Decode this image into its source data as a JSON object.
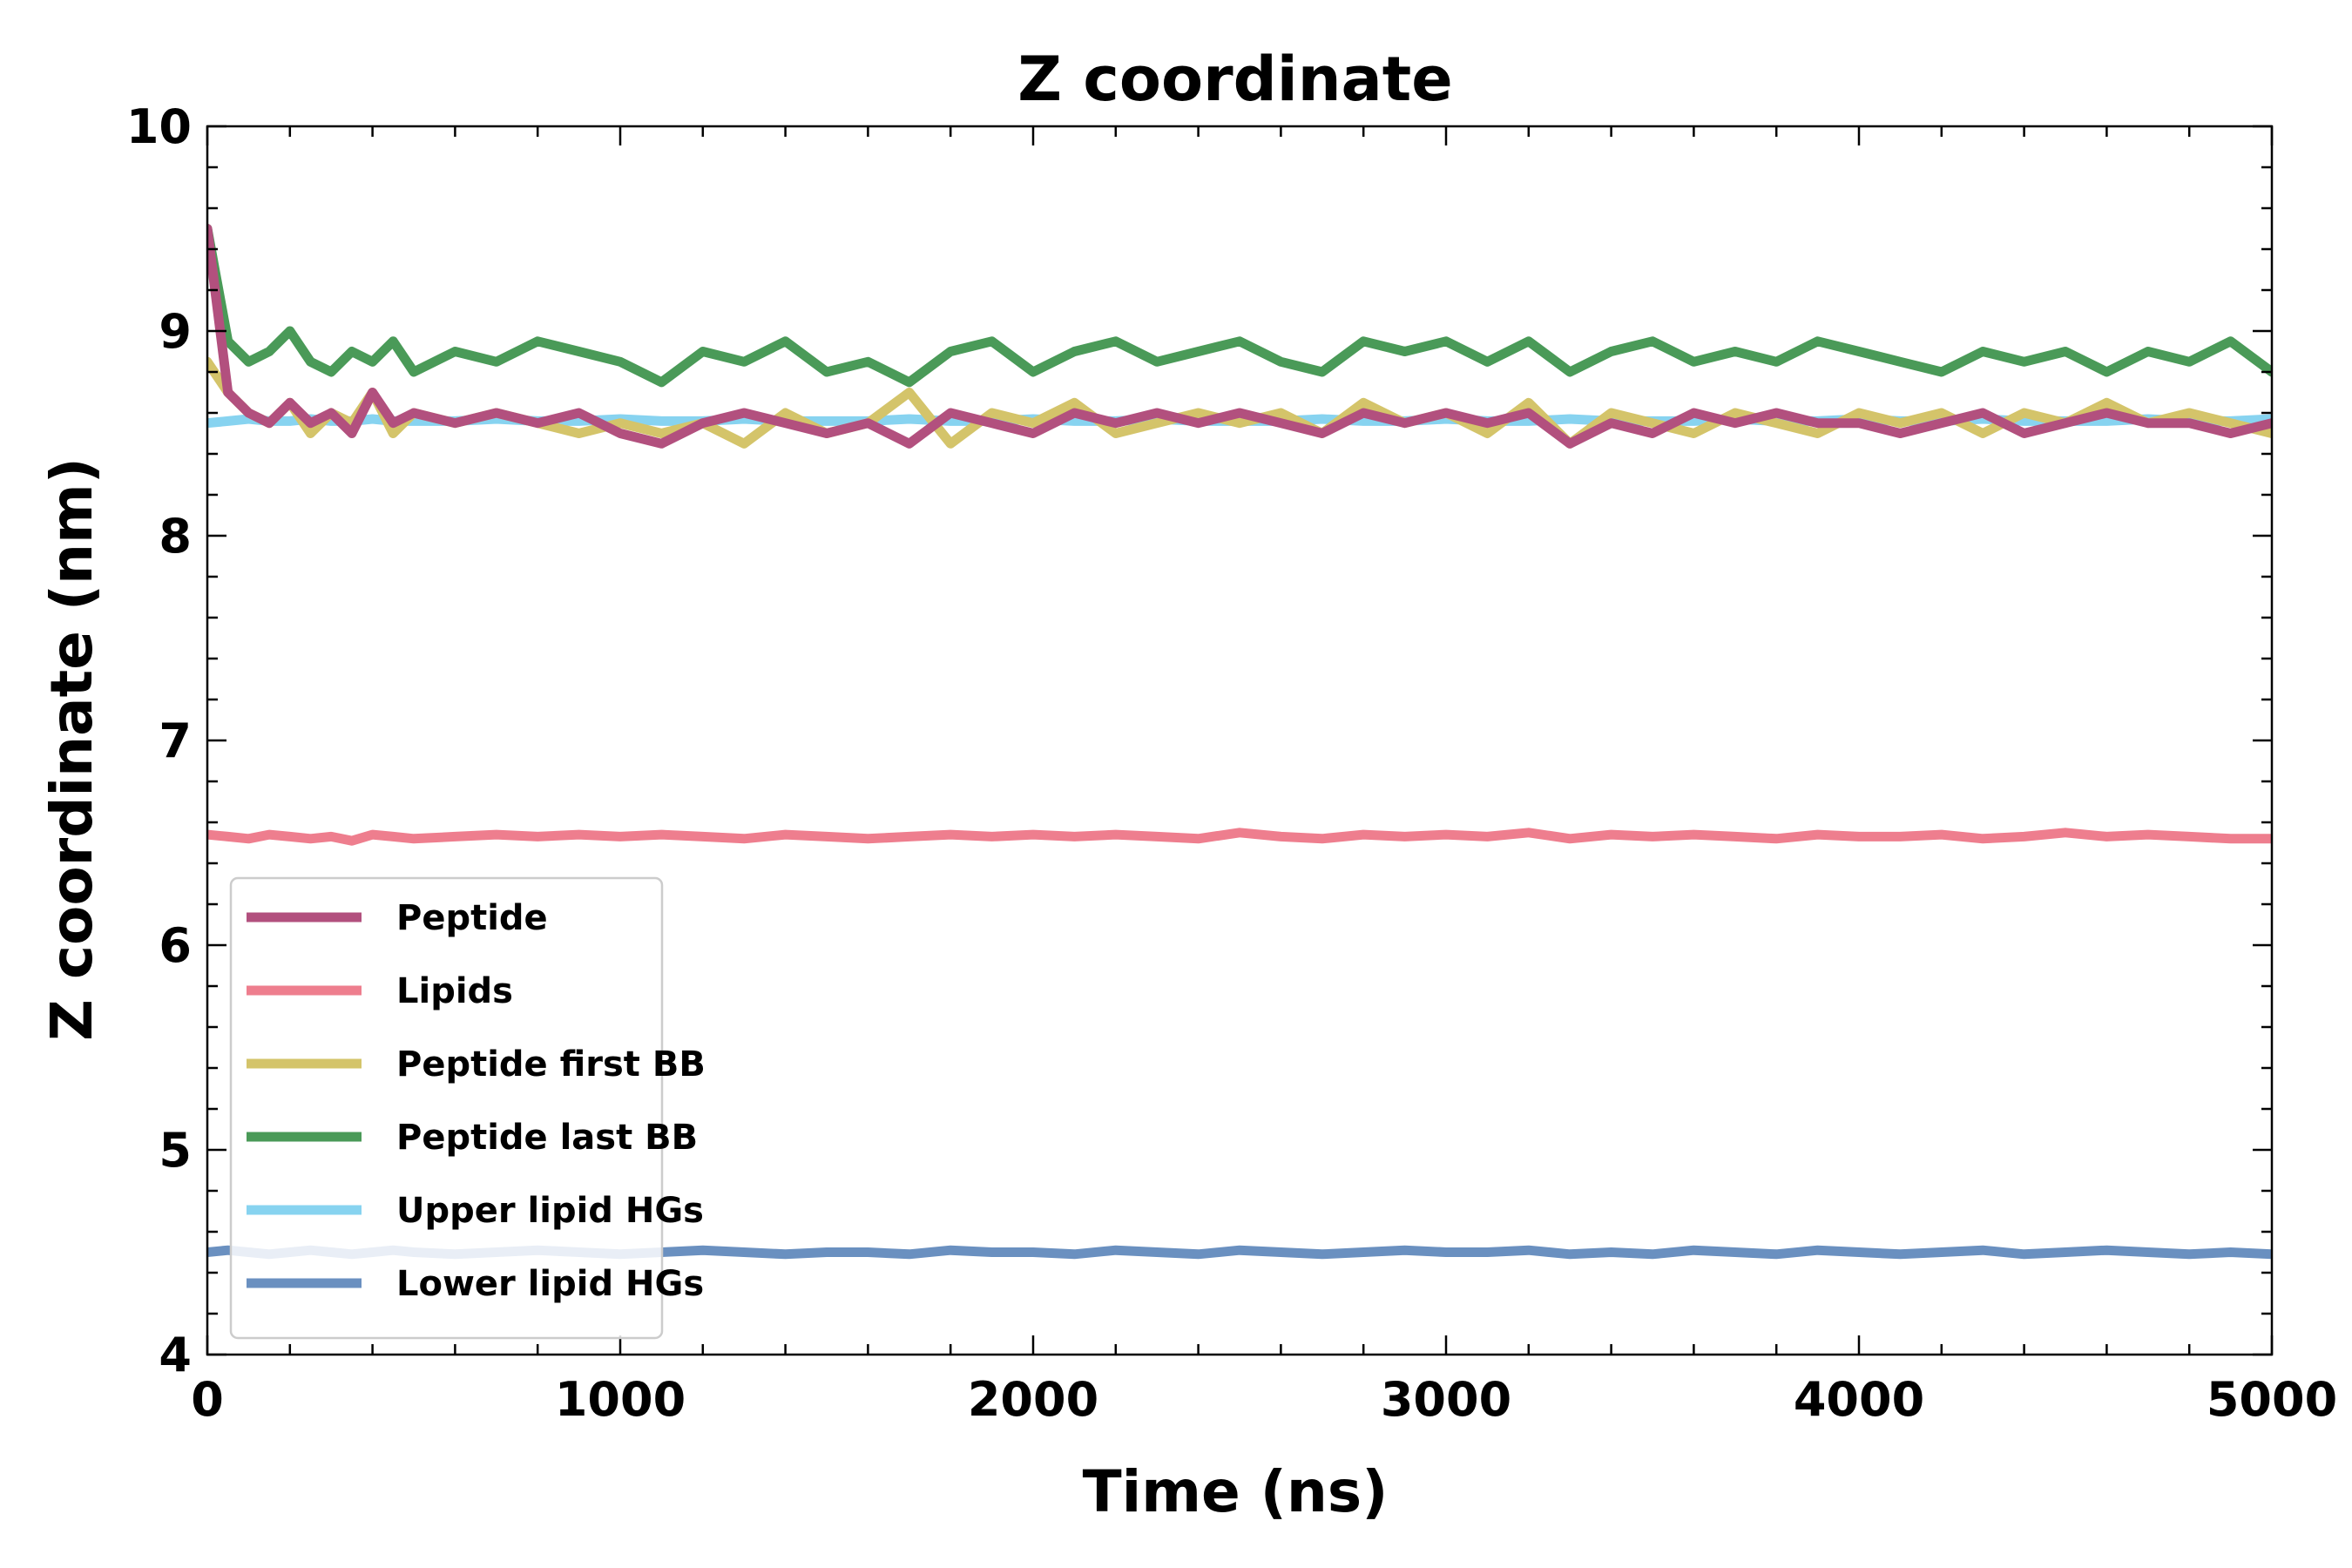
{
  "chart_data": {
    "type": "line",
    "title": "Z coordinate",
    "xlabel": "Time (ns)",
    "ylabel": "Z coordinate (nm)",
    "xlim": [
      0,
      5000
    ],
    "ylim": [
      4,
      10
    ],
    "xticks": [
      "0",
      "1000",
      "2000",
      "3000",
      "4000",
      "5000"
    ],
    "yticks": [
      "4",
      "5",
      "6",
      "7",
      "8",
      "9",
      "10"
    ],
    "grid": false,
    "legend_position": "lower-left",
    "x": [
      0,
      50,
      100,
      150,
      200,
      250,
      300,
      350,
      400,
      450,
      500,
      600,
      700,
      800,
      900,
      1000,
      1100,
      1200,
      1300,
      1400,
      1500,
      1600,
      1700,
      1800,
      1900,
      2000,
      2100,
      2200,
      2300,
      2400,
      2500,
      2600,
      2700,
      2800,
      2900,
      3000,
      3100,
      3200,
      3300,
      3400,
      3500,
      3600,
      3700,
      3800,
      3900,
      4000,
      4100,
      4200,
      4300,
      4400,
      4500,
      4600,
      4700,
      4800,
      4900,
      5000
    ],
    "series": [
      {
        "name": "Upper lipid HGs",
        "color": "#87d3f0",
        "values": [
          8.55,
          8.56,
          8.57,
          8.56,
          8.56,
          8.57,
          8.56,
          8.56,
          8.57,
          8.56,
          8.56,
          8.56,
          8.57,
          8.56,
          8.56,
          8.57,
          8.56,
          8.56,
          8.57,
          8.56,
          8.56,
          8.56,
          8.57,
          8.56,
          8.56,
          8.57,
          8.56,
          8.56,
          8.57,
          8.56,
          8.56,
          8.56,
          8.57,
          8.56,
          8.56,
          8.57,
          8.56,
          8.56,
          8.57,
          8.56,
          8.56,
          8.56,
          8.57,
          8.56,
          8.56,
          8.57,
          8.56,
          8.56,
          8.57,
          8.56,
          8.56,
          8.56,
          8.57,
          8.56,
          8.56,
          8.57
        ]
      },
      {
        "name": "Peptide first BB",
        "color": "#d4c46a",
        "values": [
          8.85,
          8.7,
          8.6,
          8.55,
          8.65,
          8.5,
          8.6,
          8.55,
          8.7,
          8.5,
          8.6,
          8.55,
          8.6,
          8.55,
          8.5,
          8.55,
          8.5,
          8.55,
          8.45,
          8.6,
          8.5,
          8.55,
          8.7,
          8.45,
          8.6,
          8.55,
          8.65,
          8.5,
          8.55,
          8.6,
          8.55,
          8.6,
          8.5,
          8.65,
          8.55,
          8.6,
          8.5,
          8.65,
          8.45,
          8.6,
          8.55,
          8.5,
          8.6,
          8.55,
          8.5,
          8.6,
          8.55,
          8.6,
          8.5,
          8.6,
          8.55,
          8.65,
          8.55,
          8.6,
          8.55,
          8.5
        ]
      },
      {
        "name": "Peptide last BB",
        "color": "#4a9a58",
        "values": [
          9.5,
          8.95,
          8.85,
          8.9,
          9.0,
          8.85,
          8.8,
          8.9,
          8.85,
          8.95,
          8.8,
          8.9,
          8.85,
          8.95,
          8.9,
          8.85,
          8.75,
          8.9,
          8.85,
          8.95,
          8.8,
          8.85,
          8.75,
          8.9,
          8.95,
          8.8,
          8.9,
          8.95,
          8.85,
          8.9,
          8.95,
          8.85,
          8.8,
          8.95,
          8.9,
          8.95,
          8.85,
          8.95,
          8.8,
          8.9,
          8.95,
          8.85,
          8.9,
          8.85,
          8.95,
          8.9,
          8.85,
          8.8,
          8.9,
          8.85,
          8.9,
          8.8,
          8.9,
          8.85,
          8.95,
          8.8
        ]
      },
      {
        "name": "Peptide",
        "color": "#b2507e",
        "values": [
          9.5,
          8.7,
          8.6,
          8.55,
          8.65,
          8.55,
          8.6,
          8.5,
          8.7,
          8.55,
          8.6,
          8.55,
          8.6,
          8.55,
          8.6,
          8.5,
          8.45,
          8.55,
          8.6,
          8.55,
          8.5,
          8.55,
          8.45,
          8.6,
          8.55,
          8.5,
          8.6,
          8.55,
          8.6,
          8.55,
          8.6,
          8.55,
          8.5,
          8.6,
          8.55,
          8.6,
          8.55,
          8.6,
          8.45,
          8.55,
          8.5,
          8.6,
          8.55,
          8.6,
          8.55,
          8.55,
          8.5,
          8.55,
          8.6,
          8.5,
          8.55,
          8.6,
          8.55,
          8.55,
          8.5,
          8.55
        ]
      },
      {
        "name": "Lipids",
        "color": "#ee7e8e",
        "values": [
          6.54,
          6.53,
          6.52,
          6.54,
          6.53,
          6.52,
          6.53,
          6.51,
          6.54,
          6.53,
          6.52,
          6.53,
          6.54,
          6.53,
          6.54,
          6.53,
          6.54,
          6.53,
          6.52,
          6.54,
          6.53,
          6.52,
          6.53,
          6.54,
          6.53,
          6.54,
          6.53,
          6.54,
          6.53,
          6.52,
          6.55,
          6.53,
          6.52,
          6.54,
          6.53,
          6.54,
          6.53,
          6.55,
          6.52,
          6.54,
          6.53,
          6.54,
          6.53,
          6.52,
          6.54,
          6.53,
          6.53,
          6.54,
          6.52,
          6.53,
          6.55,
          6.53,
          6.54,
          6.53,
          6.52,
          6.52
        ]
      },
      {
        "name": "Lower lipid HGs",
        "color": "#6a90c0",
        "values": [
          4.5,
          4.51,
          4.5,
          4.49,
          4.5,
          4.51,
          4.5,
          4.49,
          4.5,
          4.51,
          4.5,
          4.49,
          4.5,
          4.51,
          4.5,
          4.49,
          4.5,
          4.51,
          4.5,
          4.49,
          4.5,
          4.5,
          4.49,
          4.51,
          4.5,
          4.5,
          4.49,
          4.51,
          4.5,
          4.49,
          4.51,
          4.5,
          4.49,
          4.5,
          4.51,
          4.5,
          4.5,
          4.51,
          4.49,
          4.5,
          4.49,
          4.51,
          4.5,
          4.49,
          4.51,
          4.5,
          4.49,
          4.5,
          4.51,
          4.49,
          4.5,
          4.51,
          4.5,
          4.49,
          4.5,
          4.49
        ]
      }
    ],
    "legend_order": [
      "Peptide",
      "Lipids",
      "Peptide first BB",
      "Peptide last BB",
      "Upper lipid HGs",
      "Lower lipid HGs"
    ]
  }
}
